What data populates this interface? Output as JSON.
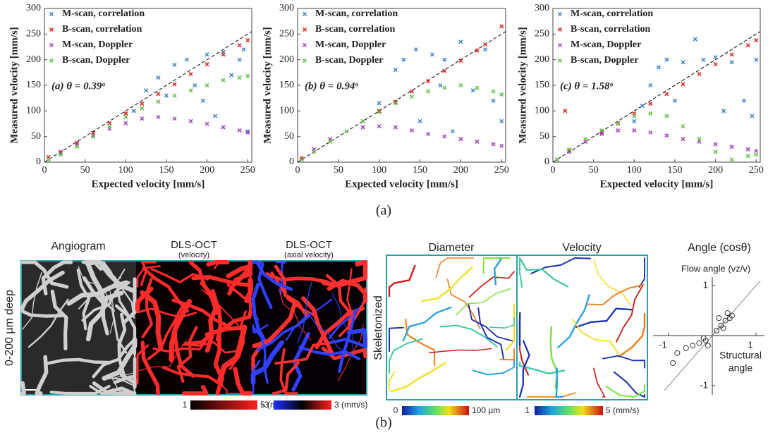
{
  "chart_data": [
    {
      "type": "scatter",
      "annotation": "(a) θ = 0.39ᵒ",
      "xlabel": "Expected velocity [mm/s]",
      "ylabel": "Measured velocity [mm/s]",
      "xlim": [
        0,
        255
      ],
      "ylim": [
        0,
        300
      ],
      "xticks": [
        0,
        50,
        100,
        150,
        200,
        250
      ],
      "yticks": [
        0,
        50,
        100,
        150,
        200,
        250,
        300
      ],
      "legend": "upper left",
      "series": [
        {
          "name": "M-scan, correlation",
          "color": "#3a7fc8",
          "x": [
            110,
            125,
            140,
            150,
            160,
            175,
            185,
            195,
            200,
            210,
            220,
            230,
            240,
            245,
            250
          ],
          "values": [
            100,
            140,
            165,
            130,
            190,
            200,
            150,
            120,
            210,
            90,
            215,
            170,
            200,
            220,
            60
          ]
        },
        {
          "name": "B-scan, correlation",
          "color": "#e0201b",
          "x": [
            5,
            20,
            40,
            60,
            80,
            100,
            120,
            140,
            160,
            180,
            200,
            220,
            240,
            250
          ],
          "values": [
            10,
            20,
            38,
            57,
            76,
            95,
            114,
            133,
            152,
            172,
            191,
            210,
            228,
            238
          ]
        },
        {
          "name": "M-scan, Doppler",
          "color": "#a040c0",
          "x": [
            5,
            20,
            40,
            60,
            80,
            100,
            120,
            140,
            160,
            180,
            200,
            220,
            240,
            250
          ],
          "values": [
            5,
            18,
            35,
            52,
            65,
            76,
            85,
            88,
            85,
            80,
            75,
            68,
            62,
            58
          ]
        },
        {
          "name": "B-scan, Doppler",
          "color": "#5cc040",
          "x": [
            5,
            20,
            40,
            60,
            80,
            100,
            120,
            140,
            160,
            180,
            200,
            220,
            240,
            250
          ],
          "values": [
            5,
            15,
            30,
            50,
            70,
            88,
            105,
            118,
            130,
            140,
            150,
            160,
            165,
            168
          ]
        }
      ]
    },
    {
      "type": "scatter",
      "annotation": "(b) θ = 0.94ᵒ",
      "xlabel": "Expected velocity [mm/s]",
      "ylabel": "Measured velocity [mm/s]",
      "xlim": [
        0,
        255
      ],
      "ylim": [
        0,
        300
      ],
      "xticks": [
        0,
        50,
        100,
        150,
        200,
        250
      ],
      "yticks": [
        0,
        50,
        100,
        150,
        200,
        250,
        300
      ],
      "legend": "upper left",
      "series": [
        {
          "name": "M-scan, correlation",
          "color": "#3a7fc8",
          "x": [
            100,
            120,
            130,
            145,
            150,
            165,
            175,
            180,
            190,
            200,
            215,
            230,
            240,
            250
          ],
          "values": [
            115,
            180,
            200,
            220,
            80,
            210,
            150,
            200,
            60,
            235,
            140,
            220,
            120,
            80
          ]
        },
        {
          "name": "B-scan, correlation",
          "color": "#e0201b",
          "x": [
            5,
            20,
            40,
            60,
            80,
            100,
            120,
            140,
            160,
            180,
            200,
            220,
            230,
            250
          ],
          "values": [
            8,
            20,
            40,
            60,
            80,
            100,
            118,
            138,
            158,
            178,
            198,
            218,
            230,
            265
          ]
        },
        {
          "name": "M-scan, Doppler",
          "color": "#a040c0",
          "x": [
            5,
            20,
            40,
            60,
            80,
            100,
            120,
            140,
            160,
            180,
            200,
            220,
            240,
            250
          ],
          "values": [
            5,
            25,
            45,
            60,
            68,
            70,
            68,
            62,
            55,
            50,
            45,
            40,
            35,
            32
          ]
        },
        {
          "name": "B-scan, Doppler",
          "color": "#5cc040",
          "x": [
            5,
            20,
            40,
            60,
            80,
            100,
            120,
            140,
            160,
            180,
            200,
            220,
            240,
            250
          ],
          "values": [
            5,
            20,
            40,
            60,
            80,
            98,
            115,
            128,
            138,
            145,
            150,
            145,
            138,
            132
          ]
        }
      ]
    },
    {
      "type": "scatter",
      "annotation": "(c) θ = 1.58ᵒ",
      "xlabel": "Expected velocity [mm/s]",
      "ylabel": "Measured velocity [mm/s]",
      "xlim": [
        0,
        255
      ],
      "ylim": [
        0,
        300
      ],
      "xticks": [
        0,
        50,
        100,
        150,
        200,
        250
      ],
      "yticks": [
        0,
        50,
        100,
        150,
        200,
        250,
        300
      ],
      "legend": "upper left",
      "series": [
        {
          "name": "M-scan, correlation",
          "color": "#3a7fc8",
          "x": [
            100,
            110,
            120,
            130,
            140,
            150,
            160,
            175,
            185,
            200,
            210,
            220,
            235,
            245,
            250
          ],
          "values": [
            80,
            110,
            150,
            185,
            200,
            120,
            195,
            240,
            200,
            205,
            100,
            195,
            120,
            90,
            200
          ]
        },
        {
          "name": "B-scan, correlation",
          "color": "#e0201b",
          "x": [
            5,
            15,
            20,
            40,
            60,
            80,
            100,
            120,
            140,
            160,
            180,
            200,
            220,
            240,
            250
          ],
          "values": [
            5,
            100,
            22,
            40,
            58,
            76,
            95,
            114,
            133,
            152,
            172,
            191,
            210,
            228,
            238
          ]
        },
        {
          "name": "M-scan, Doppler",
          "color": "#a040c0",
          "x": [
            5,
            20,
            40,
            60,
            80,
            100,
            120,
            140,
            160,
            180,
            200,
            220,
            240,
            250
          ],
          "values": [
            5,
            20,
            40,
            55,
            62,
            62,
            58,
            52,
            45,
            40,
            35,
            30,
            25,
            22
          ]
        },
        {
          "name": "B-scan, Doppler",
          "color": "#5cc040",
          "x": [
            5,
            20,
            40,
            60,
            80,
            100,
            120,
            140,
            160,
            180,
            200,
            220,
            240,
            250
          ],
          "values": [
            5,
            25,
            45,
            62,
            75,
            90,
            95,
            90,
            70,
            45,
            20,
            5,
            12,
            15
          ]
        }
      ]
    },
    {
      "type": "scatter",
      "title": "Angle (cosθ)",
      "ylabel": "Flow angle (vz/v)",
      "xlabel": [
        "Structural",
        "angle"
      ],
      "xlim": [
        -1,
        1
      ],
      "ylim": [
        -1,
        1
      ],
      "xticks": [
        -1,
        1
      ],
      "yticks": [
        1,
        -1
      ],
      "series": [
        {
          "color": "#333333",
          "x": [
            -0.9,
            -0.8,
            -0.6,
            -0.45,
            -0.3,
            -0.2,
            -0.15,
            -0.1,
            0.1,
            0.2,
            0.25,
            0.3,
            0.4,
            0.45,
            0.35,
            0.15
          ],
          "values": [
            -0.55,
            -0.35,
            -0.25,
            -0.2,
            -0.15,
            -0.05,
            -0.1,
            -0.2,
            0.1,
            0.2,
            0.15,
            0.3,
            0.35,
            0.4,
            0.45,
            0.35
          ]
        }
      ]
    }
  ],
  "figure": {
    "label_a": "(a)",
    "label_b": "(b)",
    "row_label": "0-200 µm deep",
    "skeleton_label": "Skeletonized",
    "panels": [
      "Angiogram",
      "DLS-OCT",
      "(velocity)",
      "DLS-OCT",
      "(axial velocity)",
      "Diameter",
      "Velocity"
    ],
    "colorbars": [
      {
        "min": "1",
        "max": "5 (mm/s)"
      },
      {
        "min": "-3",
        "max": "3 (mm/s)"
      },
      {
        "min": "0",
        "max": "100 µm"
      },
      {
        "min": "1",
        "max": "5 (mm/s)"
      }
    ]
  }
}
